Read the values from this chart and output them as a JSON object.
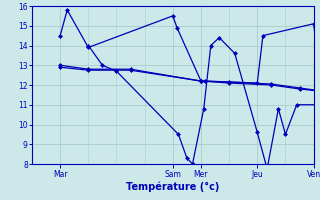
{
  "xlabel": "Température (°c)",
  "bg_color": "#cce8e8",
  "line_color": "#0000bb",
  "grid_color": "#aacccc",
  "axis_color": "#0000bb",
  "tick_color": "#0000bb",
  "ylim": [
    8,
    16
  ],
  "yticks": [
    8,
    9,
    10,
    11,
    12,
    13,
    14,
    15,
    16
  ],
  "xlim": [
    0,
    10
  ],
  "xtick_positions": [
    1,
    5,
    6,
    8,
    10
  ],
  "xtick_labels": [
    "Mar",
    "Sam",
    "Mer",
    "Jeu",
    "Ven"
  ],
  "lines": [
    {
      "x": [
        1.0,
        1.25,
        2.0,
        5.0,
        5.15,
        6.0,
        6.15,
        8.0,
        8.2,
        10.0,
        10.3,
        10.5,
        10.8
      ],
      "y": [
        14.5,
        15.8,
        13.9,
        15.5,
        14.9,
        12.2,
        12.2,
        12.1,
        14.5,
        15.1,
        11.7,
        11.85,
        11.6
      ]
    },
    {
      "x": [
        2.0,
        2.5,
        3.0,
        5.2,
        5.5,
        5.7,
        6.1,
        6.35,
        6.65,
        7.2,
        8.0,
        8.35,
        8.75,
        9.0,
        9.4,
        10.5,
        10.8
      ],
      "y": [
        14.0,
        13.0,
        12.7,
        9.5,
        8.3,
        8.0,
        10.8,
        14.0,
        14.4,
        13.6,
        9.6,
        7.75,
        10.8,
        9.5,
        11.0,
        11.0,
        11.6
      ]
    },
    {
      "x": [
        1.0,
        2.0,
        3.5,
        6.0,
        7.0,
        8.5,
        9.5,
        10.8
      ],
      "y": [
        12.9,
        12.75,
        12.75,
        12.2,
        12.1,
        12.0,
        11.8,
        11.6
      ]
    },
    {
      "x": [
        1.0,
        2.0,
        3.5,
        6.0,
        7.0,
        8.5,
        9.5,
        10.8
      ],
      "y": [
        13.0,
        12.8,
        12.8,
        12.2,
        12.15,
        12.05,
        11.85,
        11.6
      ]
    }
  ]
}
